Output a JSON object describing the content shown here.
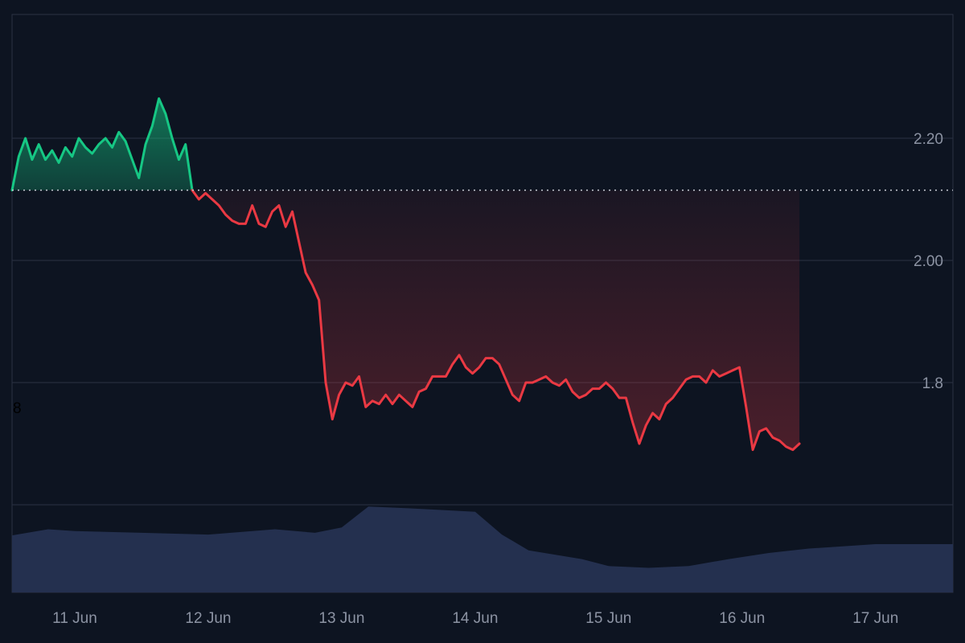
{
  "chart_data": {
    "type": "area",
    "title": "",
    "xlabel": "",
    "ylabel": "",
    "baseline": 2.115,
    "ylim": [
      1.6,
      2.4
    ],
    "y_ticks": [
      {
        "value": 2.2,
        "label": "2.20"
      },
      {
        "value": 2.0,
        "label": "2.00"
      },
      {
        "value": 1.8,
        "label": "1.8"
      }
    ],
    "stray_label": "8",
    "x_ticks": [
      {
        "value": 11,
        "label": "11 Jun"
      },
      {
        "value": 12,
        "label": "12 Jun"
      },
      {
        "value": 13,
        "label": "13 Jun"
      },
      {
        "value": 14,
        "label": "14 Jun"
      },
      {
        "value": 15,
        "label": "15 Jun"
      },
      {
        "value": 16,
        "label": "16 Jun"
      },
      {
        "value": 17,
        "label": "17 Jun"
      }
    ],
    "xlim": [
      10.53,
      17.58
    ],
    "grid": true,
    "colors": {
      "background": "#0d1421",
      "up": "#16c784",
      "down": "#ea3943",
      "volume": "#24304f",
      "grid": "#2a3242",
      "baseline": "#c8ccd4",
      "tick_text": "#8c93a3"
    },
    "series": [
      {
        "values": [
          [
            10.53,
            2.115
          ],
          [
            10.58,
            2.17
          ],
          [
            10.63,
            2.2
          ],
          [
            10.68,
            2.165
          ],
          [
            10.73,
            2.19
          ],
          [
            10.78,
            2.165
          ],
          [
            10.83,
            2.18
          ],
          [
            10.88,
            2.16
          ],
          [
            10.93,
            2.185
          ],
          [
            10.98,
            2.17
          ],
          [
            11.03,
            2.2
          ],
          [
            11.08,
            2.185
          ],
          [
            11.13,
            2.175
          ],
          [
            11.18,
            2.19
          ],
          [
            11.23,
            2.2
          ],
          [
            11.28,
            2.185
          ],
          [
            11.33,
            2.21
          ],
          [
            11.38,
            2.195
          ],
          [
            11.43,
            2.165
          ],
          [
            11.48,
            2.135
          ],
          [
            11.53,
            2.19
          ],
          [
            11.58,
            2.22
          ],
          [
            11.63,
            2.265
          ],
          [
            11.68,
            2.24
          ],
          [
            11.73,
            2.2
          ],
          [
            11.78,
            2.165
          ],
          [
            11.83,
            2.19
          ],
          [
            11.88,
            2.115
          ]
        ]
      },
      {
        "values": [
          [
            11.88,
            2.115
          ],
          [
            11.93,
            2.1
          ],
          [
            11.98,
            2.11
          ],
          [
            12.03,
            2.1
          ],
          [
            12.08,
            2.09
          ],
          [
            12.13,
            2.075
          ],
          [
            12.18,
            2.065
          ],
          [
            12.23,
            2.06
          ],
          [
            12.28,
            2.06
          ],
          [
            12.33,
            2.09
          ],
          [
            12.38,
            2.06
          ],
          [
            12.43,
            2.055
          ],
          [
            12.48,
            2.08
          ],
          [
            12.53,
            2.09
          ],
          [
            12.58,
            2.055
          ],
          [
            12.63,
            2.08
          ],
          [
            12.68,
            2.03
          ],
          [
            12.73,
            1.98
          ],
          [
            12.78,
            1.96
          ],
          [
            12.83,
            1.935
          ],
          [
            12.88,
            1.8
          ],
          [
            12.93,
            1.74
          ],
          [
            12.98,
            1.78
          ],
          [
            13.03,
            1.8
          ],
          [
            13.08,
            1.795
          ],
          [
            13.13,
            1.81
          ],
          [
            13.18,
            1.76
          ],
          [
            13.23,
            1.77
          ],
          [
            13.28,
            1.765
          ],
          [
            13.33,
            1.78
          ],
          [
            13.38,
            1.765
          ],
          [
            13.43,
            1.78
          ],
          [
            13.48,
            1.77
          ],
          [
            13.53,
            1.76
          ],
          [
            13.58,
            1.785
          ],
          [
            13.63,
            1.79
          ],
          [
            13.68,
            1.81
          ],
          [
            13.73,
            1.81
          ],
          [
            13.78,
            1.81
          ],
          [
            13.83,
            1.83
          ],
          [
            13.88,
            1.845
          ],
          [
            13.93,
            1.825
          ],
          [
            13.98,
            1.815
          ],
          [
            14.03,
            1.825
          ],
          [
            14.08,
            1.84
          ],
          [
            14.13,
            1.84
          ],
          [
            14.18,
            1.83
          ],
          [
            14.23,
            1.805
          ],
          [
            14.28,
            1.78
          ],
          [
            14.33,
            1.77
          ],
          [
            14.38,
            1.8
          ],
          [
            14.43,
            1.8
          ],
          [
            14.48,
            1.805
          ],
          [
            14.53,
            1.81
          ],
          [
            14.58,
            1.8
          ],
          [
            14.63,
            1.795
          ],
          [
            14.68,
            1.805
          ],
          [
            14.73,
            1.785
          ],
          [
            14.78,
            1.775
          ],
          [
            14.83,
            1.78
          ],
          [
            14.88,
            1.79
          ],
          [
            14.93,
            1.79
          ],
          [
            14.98,
            1.8
          ],
          [
            15.03,
            1.79
          ],
          [
            15.08,
            1.775
          ],
          [
            15.13,
            1.775
          ],
          [
            15.18,
            1.735
          ],
          [
            15.23,
            1.7
          ],
          [
            15.28,
            1.73
          ],
          [
            15.33,
            1.75
          ],
          [
            15.38,
            1.74
          ],
          [
            15.43,
            1.765
          ],
          [
            15.48,
            1.775
          ],
          [
            15.53,
            1.79
          ],
          [
            15.58,
            1.805
          ],
          [
            15.63,
            1.81
          ],
          [
            15.68,
            1.81
          ],
          [
            15.73,
            1.8
          ],
          [
            15.78,
            1.82
          ],
          [
            15.83,
            1.81
          ],
          [
            15.88,
            1.815
          ],
          [
            15.93,
            1.82
          ],
          [
            15.98,
            1.825
          ],
          [
            16.03,
            1.76
          ],
          [
            16.08,
            1.69
          ],
          [
            16.13,
            1.72
          ],
          [
            16.18,
            1.725
          ],
          [
            16.23,
            1.71
          ],
          [
            16.28,
            1.705
          ],
          [
            16.33,
            1.695
          ],
          [
            16.38,
            1.69
          ],
          [
            16.43,
            1.7
          ]
        ]
      }
    ],
    "volume": {
      "values": [
        [
          10.53,
          0.65
        ],
        [
          10.8,
          0.72
        ],
        [
          11.0,
          0.7
        ],
        [
          11.5,
          0.68
        ],
        [
          12.0,
          0.66
        ],
        [
          12.5,
          0.72
        ],
        [
          12.8,
          0.68
        ],
        [
          13.0,
          0.74
        ],
        [
          13.2,
          0.98
        ],
        [
          13.5,
          0.96
        ],
        [
          14.0,
          0.92
        ],
        [
          14.2,
          0.66
        ],
        [
          14.4,
          0.48
        ],
        [
          14.8,
          0.38
        ],
        [
          15.0,
          0.3
        ],
        [
          15.3,
          0.28
        ],
        [
          15.6,
          0.3
        ],
        [
          15.9,
          0.38
        ],
        [
          16.2,
          0.45
        ],
        [
          16.5,
          0.5
        ],
        [
          17.0,
          0.55
        ],
        [
          17.3,
          0.55
        ],
        [
          17.58,
          0.55
        ]
      ]
    }
  }
}
